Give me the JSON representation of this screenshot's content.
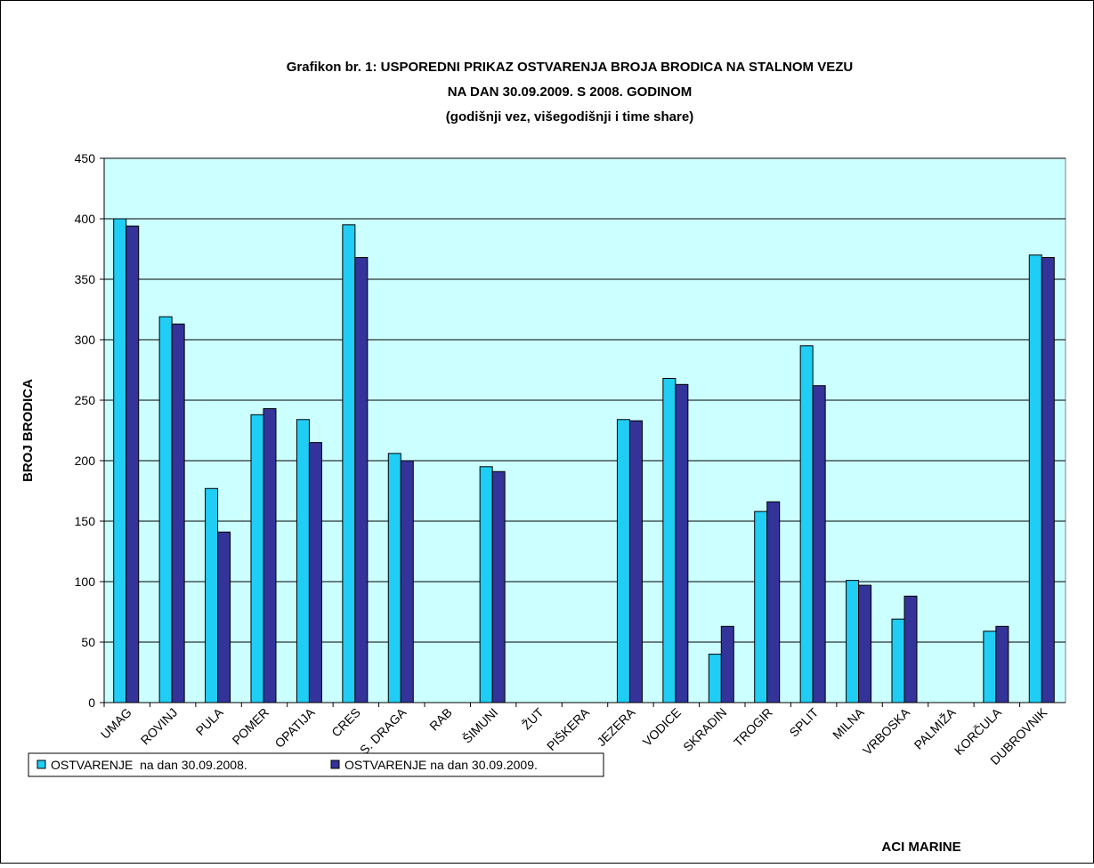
{
  "chart_data": {
    "type": "bar",
    "title": "Grafikon br. 1: USPOREDNI PRIKAZ OSTVARENJA BROJA BRODICA NA STALNOM VEZU",
    "subtitle": "NA DAN 30.09.2009. S 2008. GODINOM",
    "subtitle2": "(godišnji vez, višegodišnji i time share)",
    "y_label": "BROJ BRODICA",
    "x_label": "ACI MARINE",
    "categories": [
      "UMAG",
      "ROVINJ",
      "PULA",
      "POMER",
      "OPATIJA",
      "CRES",
      "S. DRAGA",
      "RAB",
      "ŠIMUNI",
      "ŽUT",
      "PIŠKERA",
      "JEZERA",
      "VODICE",
      "SKRADIN",
      "TROGIR",
      "SPLIT",
      "MILNA",
      "VRBOSKA",
      "PALMIŽA",
      "KORČULA",
      "DUBROVNIK"
    ],
    "series": [
      {
        "name": "OSTVARENJE  na dan 30.09.2008.",
        "color": "#1fcdf5",
        "values": [
          400,
          319,
          177,
          238,
          234,
          395,
          206,
          null,
          195,
          null,
          null,
          234,
          268,
          40,
          158,
          295,
          101,
          69,
          null,
          59,
          370
        ]
      },
      {
        "name": "OSTVARENJE na dan 30.09.2009.",
        "color": "#333399",
        "values": [
          394,
          313,
          141,
          243,
          215,
          368,
          200,
          null,
          191,
          null,
          null,
          233,
          263,
          63,
          166,
          262,
          97,
          88,
          null,
          63,
          368
        ]
      }
    ],
    "ylim": [
      0,
      450
    ],
    "yticks": [
      0,
      50,
      100,
      150,
      200,
      250,
      300,
      350,
      400,
      450
    ],
    "grid": true,
    "plot_background": "#ccffff"
  }
}
